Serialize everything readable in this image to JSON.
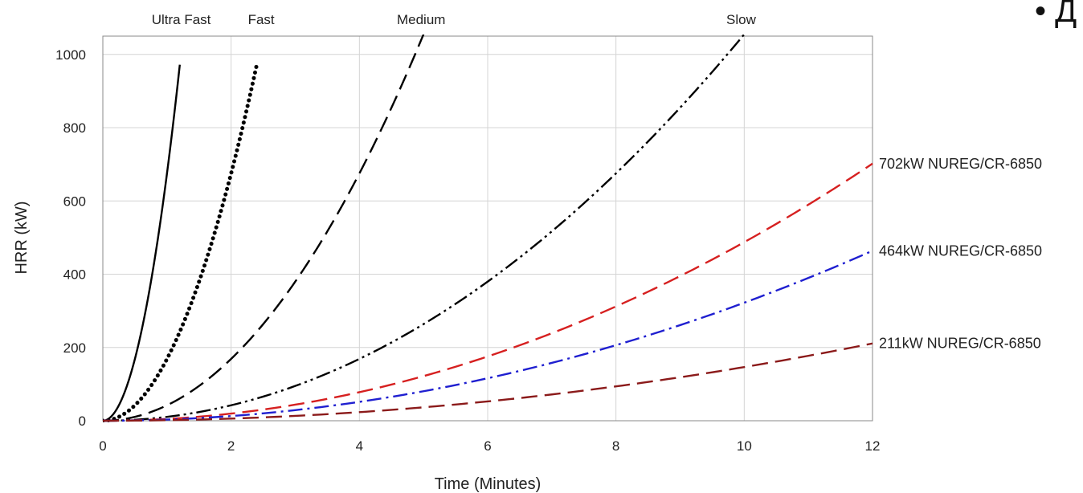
{
  "chart_data": {
    "type": "line",
    "xlabel": "Time (Minutes)",
    "ylabel": "HRR (kW)",
    "xlim": [
      0,
      12
    ],
    "ylim": [
      0,
      1050
    ],
    "x_ticks": [
      "0",
      "2",
      "4",
      "6",
      "8",
      "10",
      "12"
    ],
    "y_ticks": [
      "0",
      "200",
      "400",
      "600",
      "800",
      "1000"
    ],
    "grid": true,
    "series": [
      {
        "name": "Ultra Fast",
        "color": "#000000",
        "style": "solid",
        "x": [
          0,
          0.2,
          0.4,
          0.6,
          0.8,
          1.0,
          1.2
        ],
        "y": [
          0,
          27,
          108,
          243,
          432,
          675,
          972
        ]
      },
      {
        "name": "Fast",
        "color": "#000000",
        "style": "dotted",
        "x": [
          0,
          0.4,
          0.8,
          1.2,
          1.6,
          2.0,
          2.4
        ],
        "y": [
          0,
          27,
          108,
          243,
          432,
          675,
          972
        ]
      },
      {
        "name": "Medium",
        "color": "#000000",
        "style": "dashed",
        "x": [
          0,
          1,
          2,
          3,
          4,
          5
        ],
        "y": [
          0,
          42,
          169,
          380,
          675,
          1055
        ]
      },
      {
        "name": "Slow",
        "color": "#000000",
        "style": "dash-dot-dot",
        "x": [
          0,
          2,
          4,
          6,
          8,
          10
        ],
        "y": [
          0,
          42,
          169,
          380,
          675,
          1055
        ]
      },
      {
        "name": "702kW NUREG/CR-6850",
        "color": "#d62020",
        "style": "dashed",
        "x": [
          0,
          2,
          4,
          6,
          8,
          10,
          12
        ],
        "y": [
          0,
          19,
          78,
          175,
          312,
          487,
          702
        ]
      },
      {
        "name": "464kW NUREG/CR-6850",
        "color": "#1f1fd0",
        "style": "dash-dot",
        "x": [
          0,
          2,
          4,
          6,
          8,
          10,
          12
        ],
        "y": [
          0,
          13,
          52,
          116,
          206,
          322,
          464
        ]
      },
      {
        "name": "211kW NUREG/CR-6850",
        "color": "#8b1a1a",
        "style": "dashed",
        "x": [
          0,
          2,
          4,
          6,
          8,
          10,
          12
        ],
        "y": [
          0,
          6,
          23,
          53,
          94,
          147,
          211
        ]
      }
    ]
  },
  "corner_fragment": "• Д"
}
